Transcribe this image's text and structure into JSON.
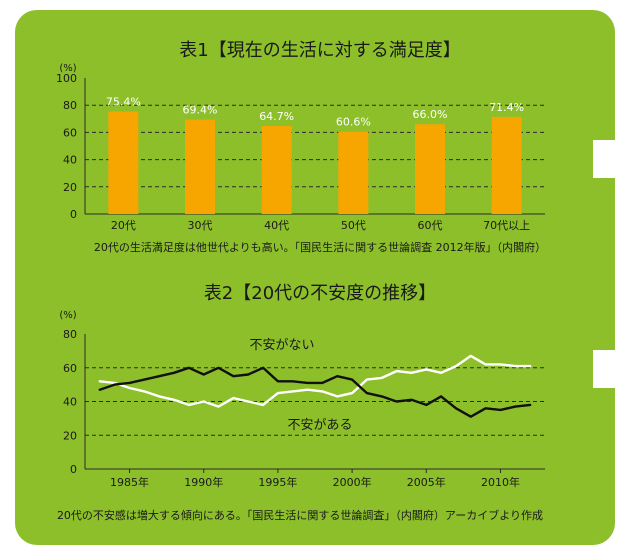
{
  "colors": {
    "panel": "#8cbf2a",
    "bar": "#f7a600",
    "text": "#1a1a1a",
    "white": "#ffffff",
    "black": "#111111",
    "grid": "#2b2b2b"
  },
  "chart_data": [
    {
      "type": "bar",
      "title": "表1【現在の生活に対する満足度】",
      "unit_label": "(%)",
      "categories": [
        "20代",
        "30代",
        "40代",
        "50代",
        "60代",
        "70代以上"
      ],
      "values": [
        75.4,
        69.4,
        64.7,
        60.6,
        66.0,
        71.4
      ],
      "value_labels": [
        "75.4%",
        "69.4%",
        "64.7%",
        "60.6%",
        "66.0%",
        "71.4%"
      ],
      "ylim": [
        0,
        100
      ],
      "yticks": [
        0,
        20,
        40,
        60,
        80,
        100
      ],
      "caption": "20代の生活満足度は他世代よりも高い。「国民生活に関する世論調査 2012年版」（内閣府）"
    },
    {
      "type": "line",
      "title": "表2【20代の不安度の推移】",
      "unit_label": "(%)",
      "x": [
        1983,
        1984,
        1985,
        1986,
        1987,
        1988,
        1989,
        1990,
        1991,
        1992,
        1993,
        1994,
        1995,
        1996,
        1997,
        1998,
        1999,
        2000,
        2001,
        2002,
        2003,
        2004,
        2005,
        2006,
        2007,
        2008,
        2009,
        2010,
        2011,
        2012
      ],
      "series": [
        {
          "name": "不安がない",
          "color": "#ffffff",
          "values": [
            52,
            51,
            48,
            46,
            43,
            41,
            38,
            40,
            37,
            42,
            40,
            38,
            45,
            46,
            47,
            46,
            43,
            45,
            53,
            54,
            58,
            57,
            59,
            57,
            61,
            67,
            62,
            62,
            61,
            61
          ]
        },
        {
          "name": "不安がある",
          "color": "#111111",
          "values": [
            47,
            50,
            51,
            53,
            55,
            57,
            60,
            56,
            60,
            55,
            56,
            60,
            52,
            52,
            51,
            51,
            55,
            53,
            45,
            43,
            40,
            41,
            38,
            43,
            36,
            31,
            36,
            35,
            37,
            38
          ]
        }
      ],
      "series_labels": [
        "不安がない",
        "不安がある"
      ],
      "ylim": [
        0,
        80
      ],
      "yticks": [
        0,
        20,
        40,
        60,
        80
      ],
      "xticks": [
        1985,
        1990,
        1995,
        2000,
        2005,
        2010
      ],
      "xtick_labels": [
        "1985年",
        "1990年",
        "1995年",
        "2000年",
        "2005年",
        "2010年"
      ],
      "caption": "20代の不安感は増大する傾向にある。「国民生活に関する世論調査」（内閣府）アーカイブより作成"
    }
  ]
}
